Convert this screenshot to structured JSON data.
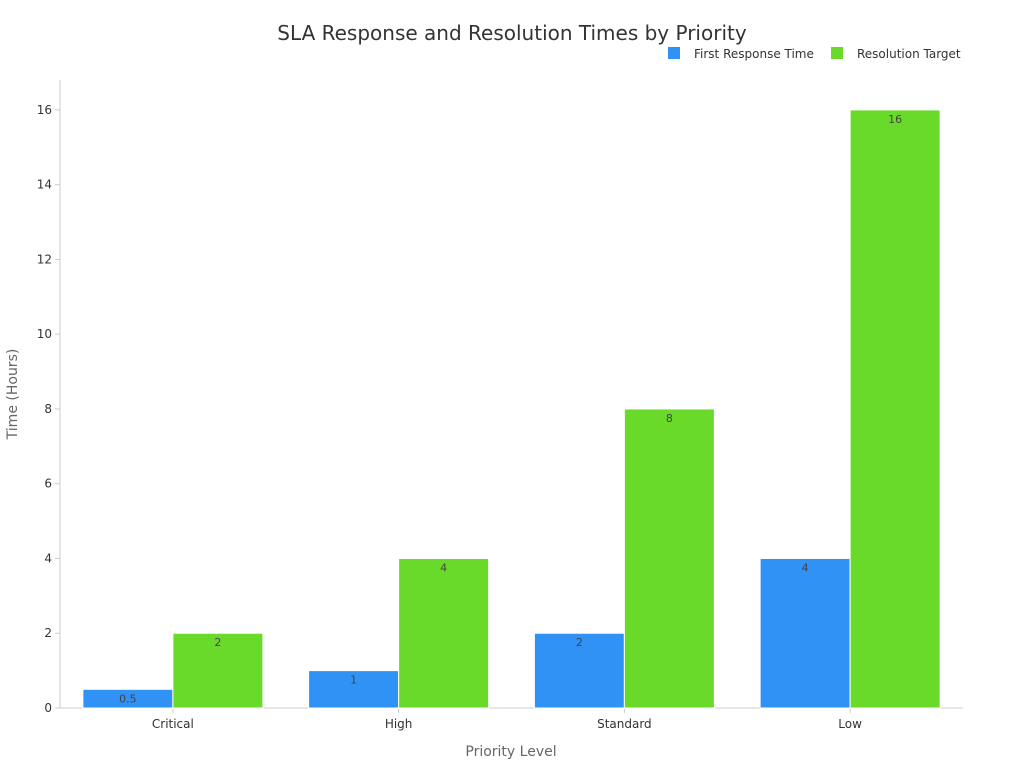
{
  "chart_data": {
    "type": "bar",
    "title": "SLA Response and Resolution Times by Priority",
    "xlabel": "Priority Level",
    "ylabel": "Time (Hours)",
    "categories": [
      "Critical",
      "High",
      "Standard",
      "Low"
    ],
    "series": [
      {
        "name": "First Response Time",
        "values": [
          0.5,
          1,
          2,
          4
        ],
        "color": "#3192f5"
      },
      {
        "name": "Resolution Target",
        "values": [
          2,
          4,
          8,
          16
        ],
        "color": "#69da2a"
      }
    ],
    "ylim": [
      0,
      16.8
    ],
    "yticks": [
      0,
      2,
      4,
      6,
      8,
      10,
      12,
      14,
      16
    ],
    "grid": false,
    "legend_position": "top-right",
    "data_labels": true
  }
}
